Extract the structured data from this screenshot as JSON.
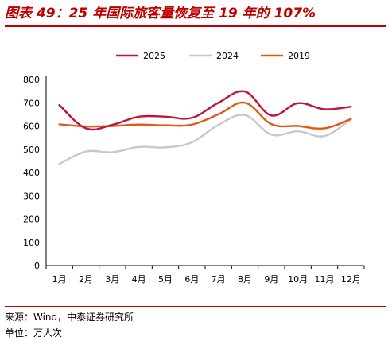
{
  "title": "图表 49：25 年国际旅客量恢复至 19 年的 107%",
  "source": "来源：Wind，中泰证券研究所",
  "unit": "单位：万人次",
  "chart_data": {
    "type": "line",
    "categories": [
      "1月",
      "2月",
      "3月",
      "4月",
      "5月",
      "6月",
      "7月",
      "8月",
      "9月",
      "10月",
      "11月",
      "12月"
    ],
    "series": [
      {
        "name": "2025",
        "color": "#c0143c",
        "values": [
          690,
          590,
          605,
          640,
          640,
          635,
          700,
          748,
          645,
          698,
          672,
          683
        ]
      },
      {
        "name": "2024",
        "color": "#c8c8c8",
        "values": [
          437,
          490,
          487,
          510,
          508,
          530,
          605,
          647,
          563,
          577,
          557,
          630
        ]
      },
      {
        "name": "2019",
        "color": "#e05a10",
        "values": [
          607,
          598,
          600,
          606,
          603,
          606,
          650,
          700,
          608,
          600,
          590,
          630
        ]
      }
    ],
    "yticks": [
      0,
      100,
      200,
      300,
      400,
      500,
      600,
      700,
      800
    ],
    "ylim": [
      0,
      800
    ],
    "legend_position": "top-center",
    "grid": false
  }
}
